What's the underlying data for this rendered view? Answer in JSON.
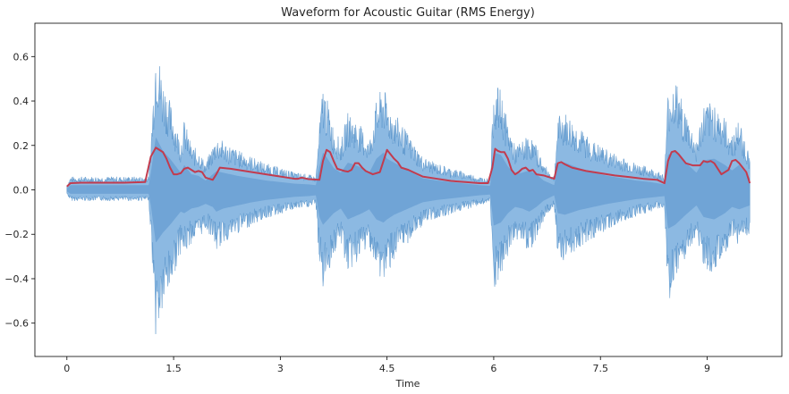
{
  "chart_data": {
    "type": "line",
    "title": "Waveform for Acoustic Guitar (RMS Energy)",
    "xlabel": "Time",
    "ylabel": "",
    "xlim": [
      -0.45,
      10.05
    ],
    "ylim": [
      -0.75,
      0.75
    ],
    "xticks": [
      0,
      1.5,
      3,
      4.5,
      6,
      7.5,
      9
    ],
    "xtick_labels": [
      "0",
      "1.5",
      "3",
      "4.5",
      "6",
      "7.5",
      "9"
    ],
    "yticks": [
      -0.6,
      -0.4,
      -0.2,
      0.0,
      0.2,
      0.4,
      0.6
    ],
    "ytick_labels": [
      "−0.6",
      "−0.4",
      "−0.2",
      "0.0",
      "0.2",
      "0.4",
      "0.6"
    ],
    "grid": false,
    "colors": {
      "waveform": "#5b9bd5",
      "rms": "#c23b4e"
    },
    "waveform_envelope": {
      "t": [
        0.0,
        0.05,
        1.15,
        1.18,
        1.25,
        1.35,
        1.45,
        1.6,
        1.65,
        1.75,
        1.85,
        1.95,
        2.05,
        2.1,
        2.2,
        2.4,
        2.6,
        2.8,
        3.0,
        3.2,
        3.4,
        3.5,
        3.55,
        3.6,
        3.65,
        3.75,
        3.85,
        3.95,
        4.05,
        4.15,
        4.25,
        4.35,
        4.45,
        4.5,
        4.6,
        4.7,
        4.8,
        4.9,
        5.0,
        5.2,
        5.4,
        5.6,
        5.8,
        5.95,
        6.0,
        6.1,
        6.2,
        6.3,
        6.4,
        6.5,
        6.6,
        6.7,
        6.85,
        6.9,
        7.0,
        7.2,
        7.4,
        7.6,
        7.8,
        8.0,
        8.2,
        8.4,
        8.45,
        8.55,
        8.7,
        8.85,
        8.95,
        9.1,
        9.25,
        9.35,
        9.45,
        9.6
      ],
      "max": [
        0.02,
        0.06,
        0.06,
        0.22,
        0.68,
        0.5,
        0.4,
        0.22,
        0.32,
        0.2,
        0.18,
        0.12,
        0.2,
        0.24,
        0.22,
        0.18,
        0.15,
        0.12,
        0.1,
        0.08,
        0.07,
        0.06,
        0.3,
        0.48,
        0.42,
        0.28,
        0.22,
        0.35,
        0.32,
        0.28,
        0.22,
        0.4,
        0.48,
        0.4,
        0.35,
        0.3,
        0.25,
        0.2,
        0.15,
        0.12,
        0.1,
        0.08,
        0.06,
        0.05,
        0.48,
        0.45,
        0.3,
        0.2,
        0.22,
        0.25,
        0.2,
        0.12,
        0.06,
        0.33,
        0.35,
        0.28,
        0.22,
        0.18,
        0.15,
        0.12,
        0.1,
        0.07,
        0.45,
        0.5,
        0.35,
        0.22,
        0.38,
        0.4,
        0.32,
        0.25,
        0.32,
        0.15
      ],
      "min": [
        -0.02,
        -0.05,
        -0.05,
        -0.2,
        -0.68,
        -0.55,
        -0.45,
        -0.28,
        -0.3,
        -0.24,
        -0.22,
        -0.18,
        -0.22,
        -0.28,
        -0.24,
        -0.2,
        -0.16,
        -0.13,
        -0.11,
        -0.09,
        -0.08,
        -0.07,
        -0.35,
        -0.45,
        -0.4,
        -0.3,
        -0.24,
        -0.38,
        -0.34,
        -0.3,
        -0.25,
        -0.38,
        -0.42,
        -0.38,
        -0.32,
        -0.28,
        -0.24,
        -0.2,
        -0.16,
        -0.13,
        -0.11,
        -0.09,
        -0.07,
        -0.06,
        -0.46,
        -0.42,
        -0.3,
        -0.22,
        -0.24,
        -0.28,
        -0.22,
        -0.14,
        -0.07,
        -0.3,
        -0.32,
        -0.26,
        -0.22,
        -0.18,
        -0.15,
        -0.12,
        -0.1,
        -0.08,
        -0.5,
        -0.45,
        -0.32,
        -0.2,
        -0.35,
        -0.38,
        -0.3,
        -0.22,
        -0.25,
        -0.2
      ]
    },
    "series": [
      {
        "x": [
          0.0,
          0.05,
          0.2,
          0.5,
          0.8,
          1.1,
          1.18,
          1.25,
          1.3,
          1.35,
          1.4,
          1.45,
          1.5,
          1.55,
          1.6,
          1.65,
          1.7,
          1.75,
          1.8,
          1.85,
          1.9,
          1.95,
          2.05,
          2.1,
          2.15,
          2.3,
          2.5,
          2.7,
          2.9,
          3.1,
          3.2,
          3.25,
          3.3,
          3.4,
          3.55,
          3.6,
          3.65,
          3.7,
          3.75,
          3.8,
          3.85,
          3.9,
          3.95,
          4.0,
          4.05,
          4.1,
          4.15,
          4.2,
          4.3,
          4.4,
          4.45,
          4.5,
          4.55,
          4.6,
          4.65,
          4.7,
          4.8,
          4.9,
          5.0,
          5.2,
          5.4,
          5.6,
          5.8,
          5.92,
          5.98,
          6.02,
          6.06,
          6.1,
          6.15,
          6.2,
          6.25,
          6.3,
          6.35,
          6.4,
          6.45,
          6.5,
          6.55,
          6.6,
          6.7,
          6.85,
          6.9,
          6.95,
          7.0,
          7.1,
          7.3,
          7.5,
          7.7,
          7.9,
          8.1,
          8.3,
          8.4,
          8.45,
          8.5,
          8.55,
          8.6,
          8.65,
          8.7,
          8.75,
          8.8,
          8.9,
          8.95,
          9.0,
          9.05,
          9.1,
          9.2,
          9.3,
          9.35,
          9.4,
          9.45,
          9.5,
          9.55,
          9.6
        ],
        "y": [
          0.015,
          0.03,
          0.032,
          0.032,
          0.032,
          0.035,
          0.15,
          0.19,
          0.18,
          0.17,
          0.14,
          0.1,
          0.07,
          0.07,
          0.075,
          0.095,
          0.1,
          0.09,
          0.08,
          0.085,
          0.08,
          0.055,
          0.045,
          0.07,
          0.1,
          0.095,
          0.085,
          0.075,
          0.065,
          0.055,
          0.05,
          0.05,
          0.055,
          0.048,
          0.045,
          0.13,
          0.18,
          0.17,
          0.13,
          0.095,
          0.09,
          0.085,
          0.082,
          0.09,
          0.12,
          0.12,
          0.1,
          0.085,
          0.07,
          0.08,
          0.13,
          0.18,
          0.16,
          0.14,
          0.125,
          0.1,
          0.09,
          0.075,
          0.06,
          0.05,
          0.04,
          0.035,
          0.03,
          0.03,
          0.1,
          0.185,
          0.175,
          0.17,
          0.17,
          0.14,
          0.09,
          0.07,
          0.08,
          0.095,
          0.1,
          0.085,
          0.09,
          0.07,
          0.065,
          0.05,
          0.12,
          0.125,
          0.115,
          0.1,
          0.085,
          0.075,
          0.065,
          0.058,
          0.05,
          0.045,
          0.03,
          0.13,
          0.17,
          0.175,
          0.16,
          0.14,
          0.12,
          0.115,
          0.11,
          0.11,
          0.13,
          0.125,
          0.13,
          0.12,
          0.07,
          0.09,
          0.13,
          0.135,
          0.12,
          0.1,
          0.08,
          0.03
        ]
      }
    ]
  }
}
